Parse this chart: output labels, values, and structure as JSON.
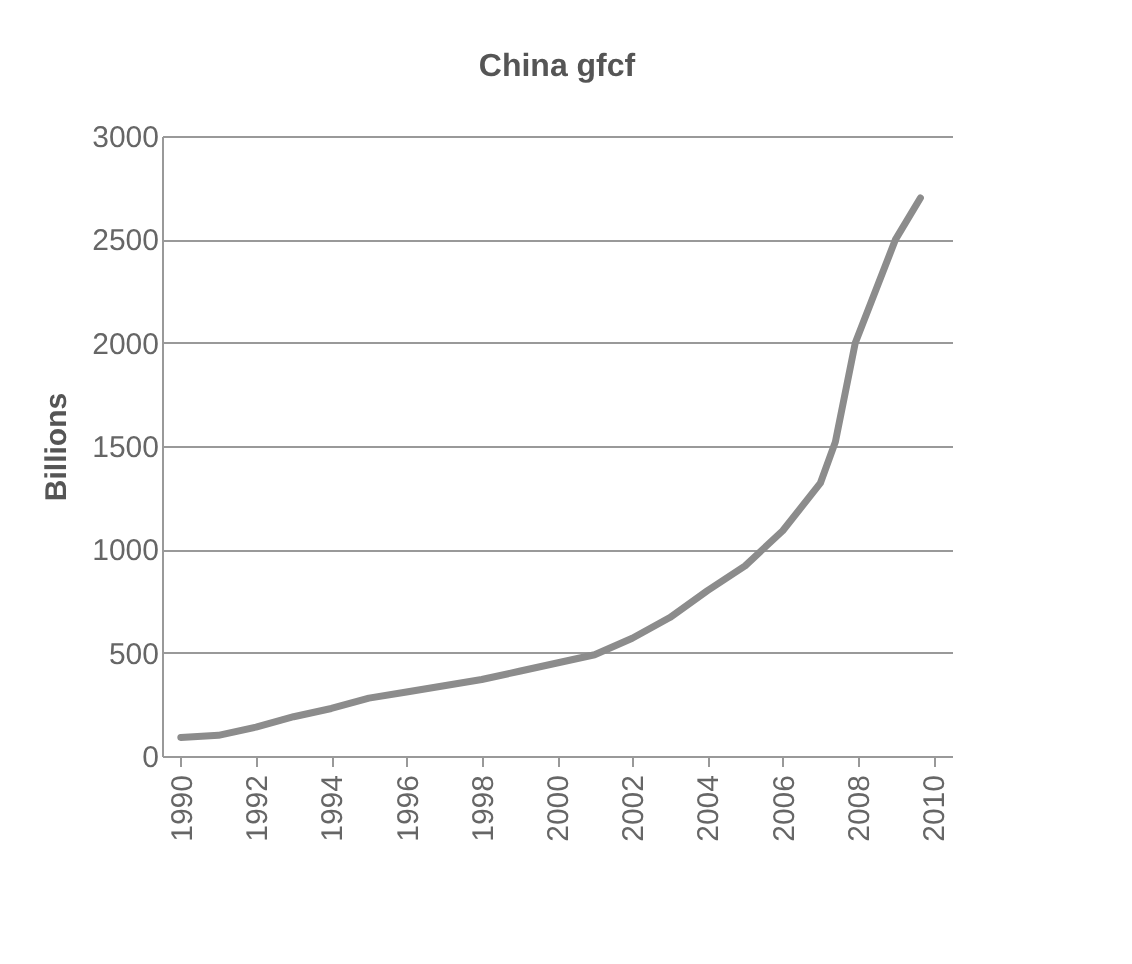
{
  "chart_data": {
    "type": "line",
    "title": "China gfcf",
    "ylabel": "Billions",
    "x": [
      1990,
      1991,
      1992,
      1993,
      1994,
      1995,
      1996,
      1997,
      1998,
      1999,
      2000,
      2001,
      2002,
      2003,
      2004,
      2005,
      2006,
      2007,
      2007.4,
      2007.93,
      2009.0,
      2009.66
    ],
    "series": [
      {
        "color": "#8c8c8c",
        "values": [
          90,
          100,
          140,
          190,
          230,
          280,
          310,
          340,
          370,
          410,
          450,
          490,
          570,
          670,
          800,
          920,
          1090,
          1320,
          1520,
          2000,
          2500,
          2700
        ]
      }
    ],
    "xlim": [
      1989.5,
      2010.5
    ],
    "xticks": [
      1990,
      1992,
      1994,
      1996,
      1998,
      2000,
      2002,
      2004,
      2006,
      2008,
      2010
    ],
    "ylim": [
      0,
      3000
    ],
    "yticks": [
      0,
      500,
      1000,
      1500,
      2000,
      2500,
      3000
    ],
    "grid": "y",
    "marker": "none",
    "line_style": "solid"
  }
}
